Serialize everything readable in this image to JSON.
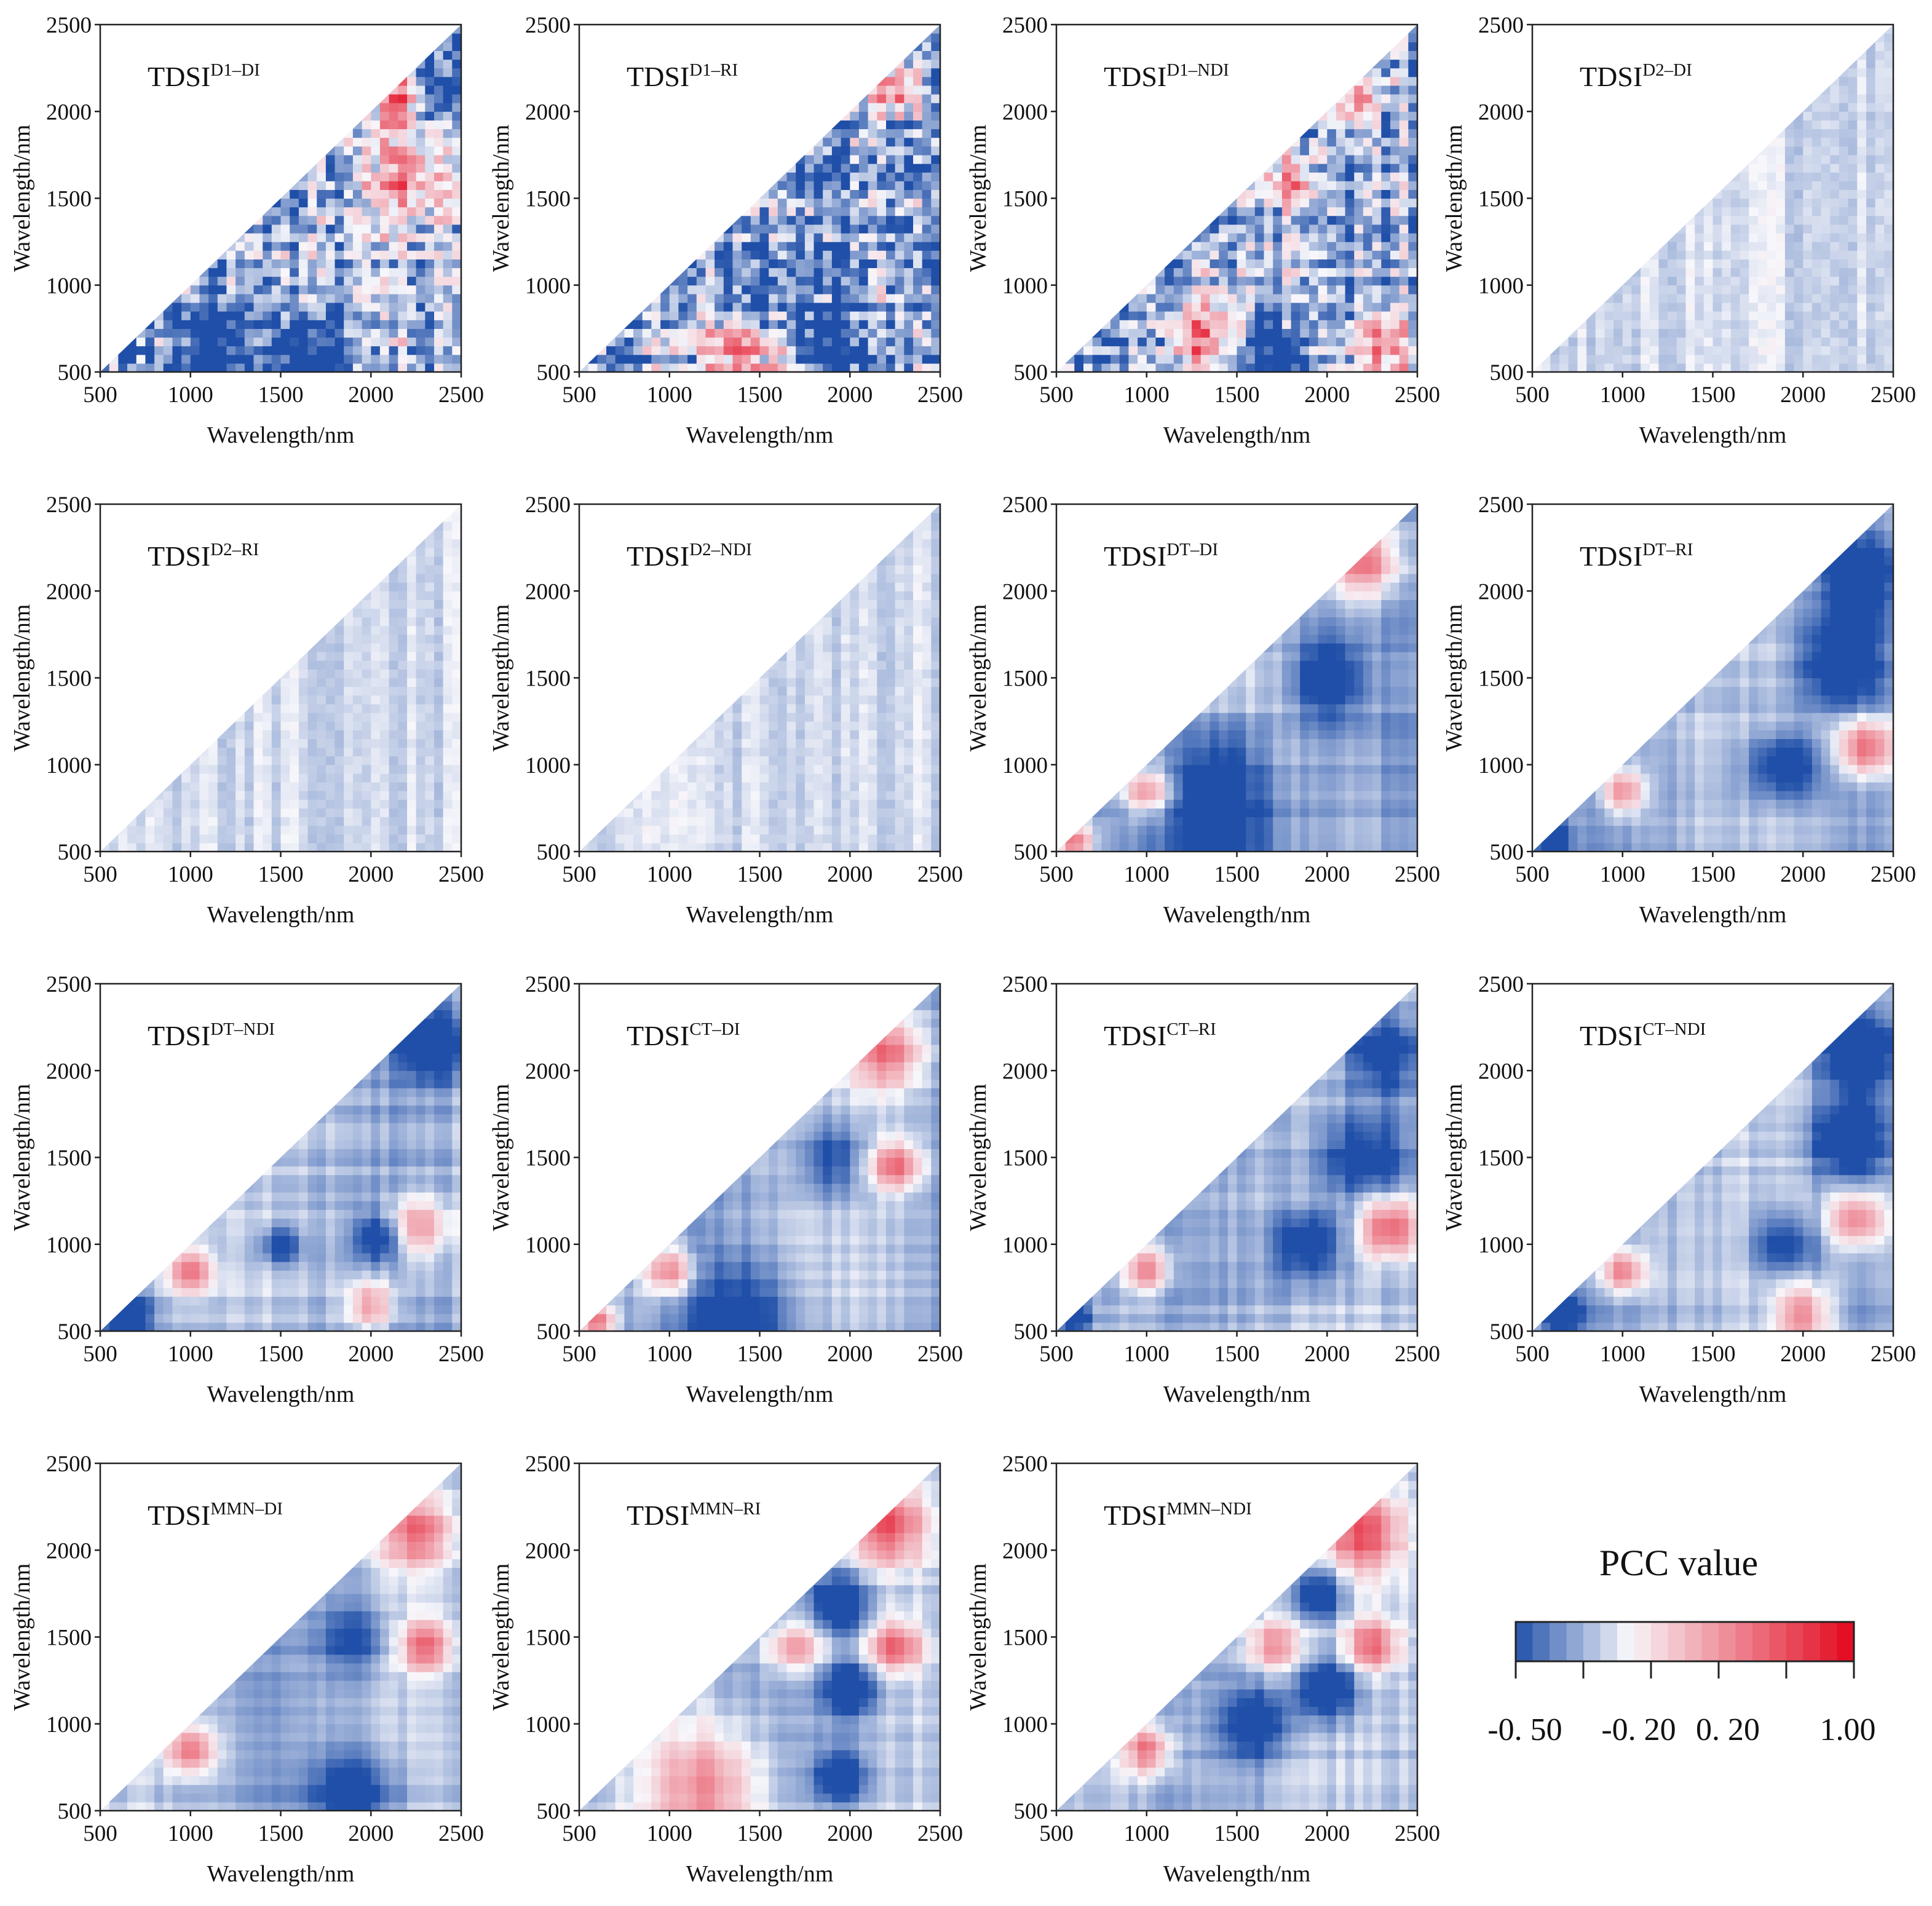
{
  "chart_data": {
    "type": "heatmap",
    "description_axes": {
      "xlabel": "Wavelength/nm",
      "ylabel": "Wavelength/nm",
      "xlim": [
        500,
        2500
      ],
      "ylim": [
        500,
        2500
      ],
      "ticks": [
        500,
        1000,
        1500,
        2000,
        2500
      ]
    },
    "panels": [
      {
        "prefix": "TDSI",
        "sup": "D1–DI",
        "xlabel": "Wavelength/nm",
        "ylabel": "Wavelength/nm",
        "ticks": [
          "500",
          "1000",
          "1500",
          "2000",
          "2500"
        ],
        "style": "noisy",
        "level": 1.0,
        "seed": 11,
        "blobs": [
          {
            "x": 2150,
            "y": 2080,
            "r": 160,
            "v": 0.8
          },
          {
            "x": 2200,
            "y": 1600,
            "r": 220,
            "v": 0.7
          },
          {
            "x": 2400,
            "y": 2200,
            "r": 200,
            "v": -0.5
          },
          {
            "x": 1100,
            "y": 650,
            "r": 250,
            "v": -0.5
          },
          {
            "x": 1650,
            "y": 600,
            "r": 200,
            "v": -0.5
          }
        ]
      },
      {
        "prefix": "TDSI",
        "sup": "D1–RI",
        "xlabel": "Wavelength/nm",
        "ylabel": "Wavelength/nm",
        "ticks": [
          "500",
          "1000",
          "1500",
          "2000",
          "2500"
        ],
        "style": "noisy",
        "level": 1.0,
        "seed": 23,
        "blobs": [
          {
            "x": 1400,
            "y": 650,
            "r": 250,
            "v": 0.7
          },
          {
            "x": 2250,
            "y": 2150,
            "r": 140,
            "v": 0.8
          },
          {
            "x": 1900,
            "y": 650,
            "r": 200,
            "v": -0.5
          },
          {
            "x": 1500,
            "y": 900,
            "r": 200,
            "v": -0.5
          }
        ]
      },
      {
        "prefix": "TDSI",
        "sup": "D1–NDI",
        "xlabel": "Wavelength/nm",
        "ylabel": "Wavelength/nm",
        "ticks": [
          "500",
          "1000",
          "1500",
          "2000",
          "2500"
        ],
        "style": "noisy",
        "level": 0.9,
        "seed": 37,
        "blobs": [
          {
            "x": 1300,
            "y": 700,
            "r": 200,
            "v": 0.7
          },
          {
            "x": 2300,
            "y": 650,
            "r": 180,
            "v": 0.7
          },
          {
            "x": 2150,
            "y": 2050,
            "r": 120,
            "v": 0.7
          },
          {
            "x": 1800,
            "y": 1600,
            "r": 130,
            "v": 0.6
          },
          {
            "x": 1700,
            "y": 600,
            "r": 200,
            "v": -0.5
          }
        ]
      },
      {
        "prefix": "TDSI",
        "sup": "D2–DI",
        "xlabel": "Wavelength/nm",
        "ylabel": "Wavelength/nm",
        "ticks": [
          "500",
          "1000",
          "1500",
          "2000",
          "2500"
        ],
        "style": "faint",
        "level": 0.35,
        "seed": 41,
        "blobs": []
      },
      {
        "prefix": "TDSI",
        "sup": "D2–RI",
        "xlabel": "Wavelength/nm",
        "ylabel": "Wavelength/nm",
        "ticks": [
          "500",
          "1000",
          "1500",
          "2000",
          "2500"
        ],
        "style": "faint",
        "level": 0.28,
        "seed": 53,
        "blobs": []
      },
      {
        "prefix": "TDSI",
        "sup": "D2–NDI",
        "xlabel": "Wavelength/nm",
        "ylabel": "Wavelength/nm",
        "ticks": [
          "500",
          "1000",
          "1500",
          "2000",
          "2500"
        ],
        "style": "faint",
        "level": 0.3,
        "seed": 67,
        "blobs": []
      },
      {
        "prefix": "TDSI",
        "sup": "DT–DI",
        "xlabel": "Wavelength/nm",
        "ylabel": "Wavelength/nm",
        "ticks": [
          "500",
          "1000",
          "1500",
          "2000",
          "2500"
        ],
        "style": "smooth",
        "level": 0.9,
        "seed": 71,
        "blobs": [
          {
            "x": 2200,
            "y": 2180,
            "r": 200,
            "v": 0.75
          },
          {
            "x": 1000,
            "y": 850,
            "r": 130,
            "v": 0.7
          },
          {
            "x": 600,
            "y": 560,
            "r": 90,
            "v": 0.8
          },
          {
            "x": 2000,
            "y": 1500,
            "r": 220,
            "v": -0.5
          },
          {
            "x": 1400,
            "y": 600,
            "r": 350,
            "v": -0.5
          },
          {
            "x": 1400,
            "y": 1000,
            "r": 250,
            "v": -0.3
          }
        ]
      },
      {
        "prefix": "TDSI",
        "sup": "DT–RI",
        "xlabel": "Wavelength/nm",
        "ylabel": "Wavelength/nm",
        "ticks": [
          "500",
          "1000",
          "1500",
          "2000",
          "2500"
        ],
        "style": "smooth",
        "level": 0.9,
        "seed": 83,
        "blobs": [
          {
            "x": 2350,
            "y": 1100,
            "r": 160,
            "v": 0.8
          },
          {
            "x": 1000,
            "y": 850,
            "r": 120,
            "v": 0.7
          },
          {
            "x": 2300,
            "y": 2100,
            "r": 220,
            "v": -0.55
          },
          {
            "x": 2200,
            "y": 1600,
            "r": 250,
            "v": -0.5
          },
          {
            "x": 600,
            "y": 580,
            "r": 100,
            "v": -0.6
          },
          {
            "x": 1900,
            "y": 1000,
            "r": 200,
            "v": -0.5
          }
        ]
      },
      {
        "prefix": "TDSI",
        "sup": "DT–NDI",
        "xlabel": "Wavelength/nm",
        "ylabel": "Wavelength/nm",
        "ticks": [
          "500",
          "1000",
          "1500",
          "2000",
          "2500"
        ],
        "style": "smooth",
        "level": 1.0,
        "seed": 97,
        "blobs": [
          {
            "x": 2250,
            "y": 1100,
            "r": 180,
            "v": 0.6
          },
          {
            "x": 2000,
            "y": 650,
            "r": 130,
            "v": 0.6
          },
          {
            "x": 1000,
            "y": 850,
            "r": 120,
            "v": 0.7
          },
          {
            "x": 2350,
            "y": 2150,
            "r": 200,
            "v": -0.55
          },
          {
            "x": 2050,
            "y": 1050,
            "r": 130,
            "v": -0.55
          },
          {
            "x": 1500,
            "y": 1000,
            "r": 100,
            "v": -0.5
          },
          {
            "x": 650,
            "y": 600,
            "r": 120,
            "v": -0.6
          }
        ]
      },
      {
        "prefix": "TDSI",
        "sup": "CT–DI",
        "xlabel": "Wavelength/nm",
        "ylabel": "Wavelength/nm",
        "ticks": [
          "500",
          "1000",
          "1500",
          "2000",
          "2500"
        ],
        "style": "smooth",
        "level": 0.85,
        "seed": 101,
        "blobs": [
          {
            "x": 2200,
            "y": 2100,
            "r": 200,
            "v": 0.7
          },
          {
            "x": 2250,
            "y": 1450,
            "r": 140,
            "v": 0.75
          },
          {
            "x": 1000,
            "y": 850,
            "r": 130,
            "v": 0.7
          },
          {
            "x": 600,
            "y": 560,
            "r": 90,
            "v": 0.8
          },
          {
            "x": 1900,
            "y": 1500,
            "r": 200,
            "v": -0.4
          },
          {
            "x": 1400,
            "y": 600,
            "r": 300,
            "v": -0.4
          }
        ]
      },
      {
        "prefix": "TDSI",
        "sup": "CT–RI",
        "xlabel": "Wavelength/nm",
        "ylabel": "Wavelength/nm",
        "ticks": [
          "500",
          "1000",
          "1500",
          "2000",
          "2500"
        ],
        "style": "smooth",
        "level": 0.9,
        "seed": 113,
        "blobs": [
          {
            "x": 2350,
            "y": 1100,
            "r": 160,
            "v": 0.8
          },
          {
            "x": 1000,
            "y": 850,
            "r": 120,
            "v": 0.7
          },
          {
            "x": 2300,
            "y": 2100,
            "r": 220,
            "v": -0.55
          },
          {
            "x": 2200,
            "y": 1500,
            "r": 250,
            "v": -0.5
          },
          {
            "x": 600,
            "y": 580,
            "r": 100,
            "v": -0.6
          },
          {
            "x": 1900,
            "y": 1000,
            "r": 200,
            "v": -0.5
          }
        ]
      },
      {
        "prefix": "TDSI",
        "sup": "CT–NDI",
        "xlabel": "Wavelength/nm",
        "ylabel": "Wavelength/nm",
        "ticks": [
          "500",
          "1000",
          "1500",
          "2000",
          "2500"
        ],
        "style": "smooth",
        "level": 0.9,
        "seed": 127,
        "blobs": [
          {
            "x": 2300,
            "y": 1150,
            "r": 160,
            "v": 0.7
          },
          {
            "x": 1000,
            "y": 850,
            "r": 120,
            "v": 0.7
          },
          {
            "x": 2000,
            "y": 600,
            "r": 150,
            "v": 0.6
          },
          {
            "x": 2300,
            "y": 2100,
            "r": 220,
            "v": -0.55
          },
          {
            "x": 2250,
            "y": 1600,
            "r": 220,
            "v": -0.5
          },
          {
            "x": 1900,
            "y": 1000,
            "r": 180,
            "v": -0.45
          },
          {
            "x": 650,
            "y": 600,
            "r": 110,
            "v": -0.6
          }
        ]
      },
      {
        "prefix": "TDSI",
        "sup": "MMN–DI",
        "xlabel": "Wavelength/nm",
        "ylabel": "Wavelength/nm",
        "ticks": [
          "500",
          "1000",
          "1500",
          "2000",
          "2500"
        ],
        "style": "smooth",
        "level": 0.85,
        "seed": 131,
        "blobs": [
          {
            "x": 2250,
            "y": 2100,
            "r": 200,
            "v": 0.7
          },
          {
            "x": 2300,
            "y": 1450,
            "r": 140,
            "v": 0.75
          },
          {
            "x": 1000,
            "y": 850,
            "r": 130,
            "v": 0.7
          },
          {
            "x": 1900,
            "y": 1500,
            "r": 200,
            "v": -0.35
          },
          {
            "x": 1900,
            "y": 600,
            "r": 250,
            "v": -0.45
          }
        ]
      },
      {
        "prefix": "TDSI",
        "sup": "MMN–RI",
        "xlabel": "Wavelength/nm",
        "ylabel": "Wavelength/nm",
        "ticks": [
          "500",
          "1000",
          "1500",
          "2000",
          "2500"
        ],
        "style": "smooth",
        "level": 0.95,
        "seed": 149,
        "blobs": [
          {
            "x": 2200,
            "y": 2150,
            "r": 220,
            "v": 0.85
          },
          {
            "x": 2250,
            "y": 1450,
            "r": 150,
            "v": 0.75
          },
          {
            "x": 1200,
            "y": 650,
            "r": 300,
            "v": 0.6
          },
          {
            "x": 1700,
            "y": 1450,
            "r": 150,
            "v": 0.6
          },
          {
            "x": 2000,
            "y": 1200,
            "r": 150,
            "v": -0.55
          },
          {
            "x": 1950,
            "y": 1700,
            "r": 150,
            "v": -0.55
          },
          {
            "x": 1950,
            "y": 700,
            "r": 130,
            "v": -0.55
          }
        ]
      },
      {
        "prefix": "TDSI",
        "sup": "MMN–NDI",
        "xlabel": "Wavelength/nm",
        "ylabel": "Wavelength/nm",
        "ticks": [
          "500",
          "1000",
          "1500",
          "2000",
          "2500"
        ],
        "style": "smooth",
        "level": 0.95,
        "seed": 163,
        "blobs": [
          {
            "x": 2200,
            "y": 2100,
            "r": 220,
            "v": 0.85
          },
          {
            "x": 2250,
            "y": 1450,
            "r": 150,
            "v": 0.75
          },
          {
            "x": 1700,
            "y": 1450,
            "r": 150,
            "v": 0.6
          },
          {
            "x": 1000,
            "y": 850,
            "r": 130,
            "v": 0.7
          },
          {
            "x": 2000,
            "y": 1200,
            "r": 180,
            "v": -0.6
          },
          {
            "x": 1950,
            "y": 1750,
            "r": 150,
            "v": -0.6
          },
          {
            "x": 1600,
            "y": 1000,
            "r": 200,
            "v": -0.5
          }
        ]
      }
    ],
    "colorbar": {
      "title": "PCC value",
      "min": -0.5,
      "max": 1.0,
      "tick_labels": [
        "-0. 50",
        "-0. 20",
        "0. 20",
        "1.00"
      ],
      "tick_values": [
        -0.5,
        -0.2,
        0.2,
        1.0
      ],
      "colors": {
        "low": "#1f4fa8",
        "mid": "#f7f7fb",
        "high": "#e3061c"
      }
    }
  }
}
